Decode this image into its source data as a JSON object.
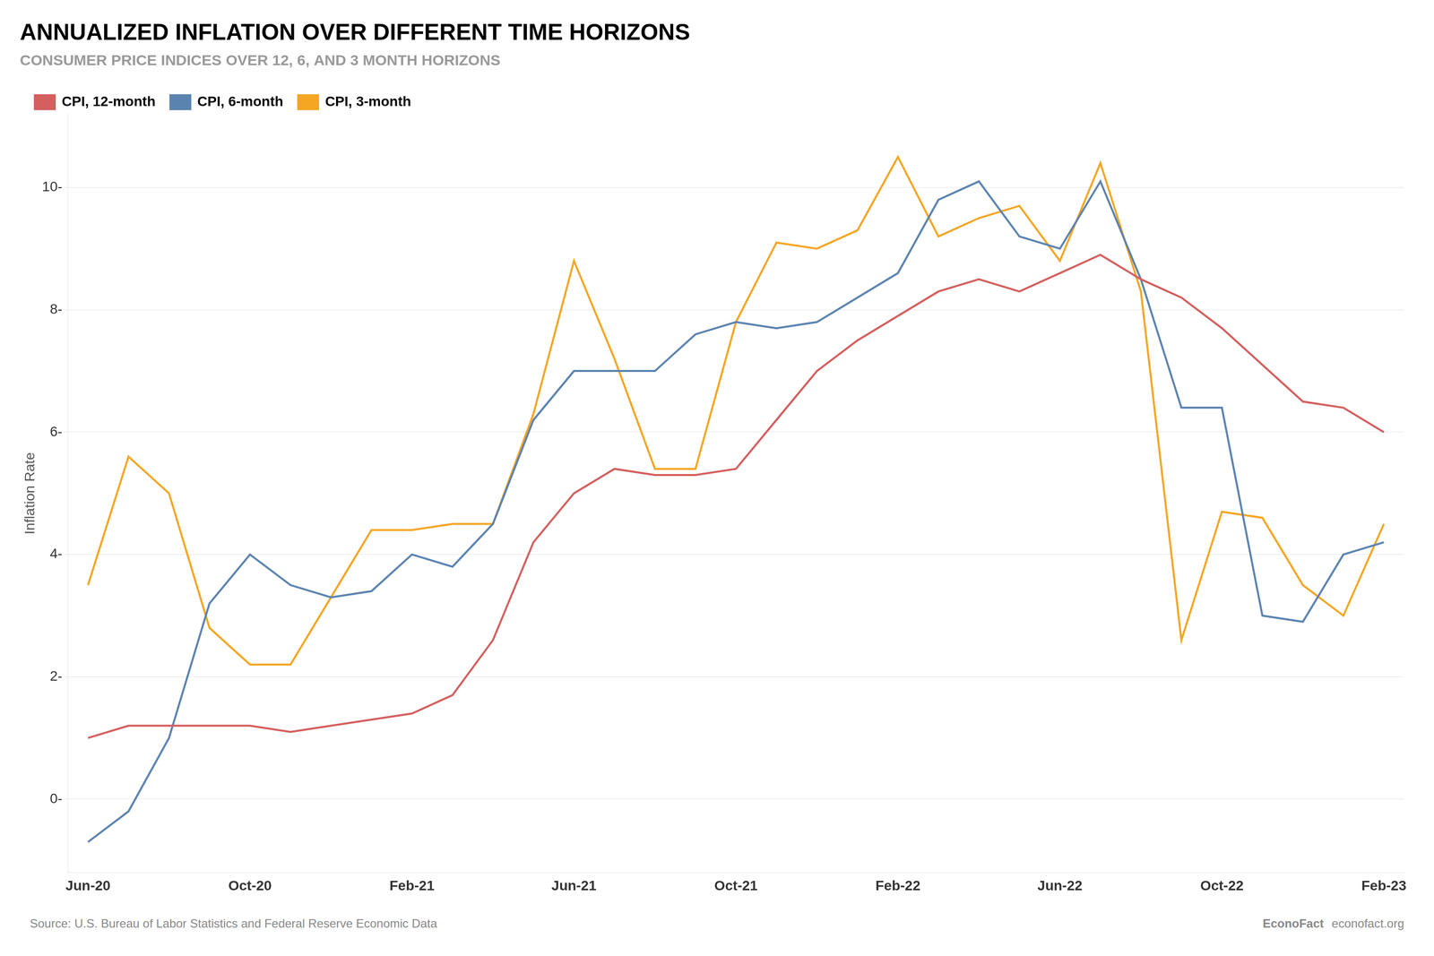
{
  "chart_data": {
    "type": "line",
    "title": "ANNUALIZED INFLATION OVER DIFFERENT TIME HORIZONS",
    "subtitle": "CONSUMER PRICE INDICES OVER 12, 6, AND 3 MONTH HORIZONS",
    "ylabel": "Inflation Rate",
    "annotations": [
      "Source: U.S. Bureau of Labor Statistics and Federal Reserve Economic Data",
      "EconoFact",
      "econofact.org"
    ],
    "categories": [
      "Jun-20",
      null,
      null,
      null,
      "Oct-20",
      null,
      null,
      null,
      "Feb-21",
      null,
      null,
      null,
      "Jun-21",
      null,
      null,
      null,
      "Oct-21",
      null,
      null,
      null,
      "Feb-22",
      null,
      null,
      null,
      "Jun-22",
      null,
      null,
      null,
      "Oct-22",
      null,
      null,
      null,
      "Feb-23"
    ],
    "series": [
      {
        "name": "CPI, 12-month",
        "color": "#d45f5f",
        "values": [
          1.0,
          1.2,
          1.2,
          1.2,
          1.2,
          1.1,
          1.2,
          1.3,
          1.4,
          1.7,
          2.6,
          4.2,
          5.0,
          5.4,
          5.3,
          5.3,
          5.4,
          6.2,
          7.0,
          7.5,
          7.9,
          8.3,
          8.5,
          8.3,
          8.6,
          8.9,
          8.5,
          8.2,
          7.7,
          7.1,
          6.5,
          6.4,
          6.0
        ]
      },
      {
        "name": "CPI, 6-month",
        "color": "#5b83b0",
        "values": [
          -0.7,
          -0.2,
          1.0,
          3.2,
          4.0,
          3.5,
          3.3,
          3.4,
          4.0,
          3.8,
          4.5,
          6.2,
          7.0,
          7.0,
          7.0,
          7.6,
          7.8,
          7.7,
          7.8,
          8.2,
          8.6,
          9.8,
          10.1,
          9.2,
          9.0,
          10.1,
          8.5,
          6.4,
          6.4,
          3.0,
          2.9,
          4.0,
          4.2
        ]
      },
      {
        "name": "CPI, 3-month",
        "color": "#f5a623",
        "values": [
          3.5,
          5.6,
          5.0,
          2.8,
          2.2,
          2.2,
          3.3,
          4.4,
          4.4,
          4.5,
          4.5,
          6.3,
          8.8,
          7.2,
          5.4,
          5.4,
          7.8,
          9.1,
          9.0,
          9.3,
          10.5,
          9.2,
          9.5,
          9.7,
          8.8,
          10.4,
          8.3,
          2.6,
          4.7,
          4.6,
          3.5,
          3.0,
          4.5
        ]
      }
    ],
    "ylim": [
      -1.2,
      11.2
    ],
    "yticks": [
      {
        "value": 0,
        "label": "0-"
      },
      {
        "value": 2,
        "label": "2-"
      },
      {
        "value": 4,
        "label": "4-"
      },
      {
        "value": 6,
        "label": "6-"
      },
      {
        "value": 8,
        "label": "8-"
      },
      {
        "value": 10,
        "label": "10-"
      }
    ],
    "grid": "y",
    "legend": "upper left"
  }
}
